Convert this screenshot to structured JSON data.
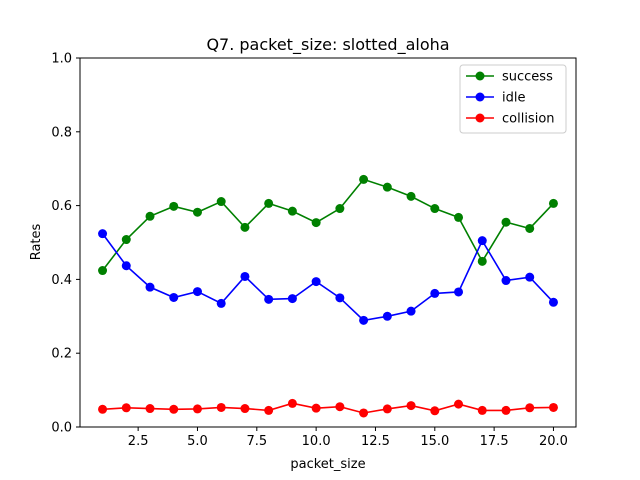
{
  "chart_data": {
    "type": "line",
    "title": "Q7. packet_size: slotted_aloha",
    "xlabel": "packet_size",
    "ylabel": "Rates",
    "xlim": [
      0.05,
      20.95
    ],
    "ylim": [
      0,
      1.0
    ],
    "xticks": [
      2.5,
      5.0,
      7.5,
      10.0,
      12.5,
      15.0,
      17.5,
      20.0
    ],
    "xtick_labels": [
      "2.5",
      "5.0",
      "7.5",
      "10.0",
      "12.5",
      "15.0",
      "17.5",
      "20.0"
    ],
    "yticks": [
      0,
      0.2,
      0.4,
      0.6,
      0.8,
      1.0
    ],
    "ytick_labels": [
      "0.0",
      "0.2",
      "0.4",
      "0.6",
      "0.8",
      "1.0"
    ],
    "grid": false,
    "legend_position": "top-right",
    "x": [
      1,
      2,
      3,
      4,
      5,
      6,
      7,
      8,
      9,
      10,
      11,
      12,
      13,
      14,
      15,
      16,
      17,
      18,
      19,
      20
    ],
    "series": [
      {
        "name": "success",
        "color": "#008000",
        "values": [
          0.424,
          0.508,
          0.571,
          0.598,
          0.582,
          0.611,
          0.541,
          0.606,
          0.585,
          0.554,
          0.592,
          0.671,
          0.65,
          0.625,
          0.592,
          0.568,
          0.449,
          0.555,
          0.538,
          0.606
        ]
      },
      {
        "name": "idle",
        "color": "#0000ff",
        "values": [
          0.524,
          0.437,
          0.379,
          0.351,
          0.367,
          0.335,
          0.408,
          0.346,
          0.348,
          0.394,
          0.35,
          0.289,
          0.3,
          0.314,
          0.362,
          0.366,
          0.505,
          0.397,
          0.406,
          0.338
        ]
      },
      {
        "name": "collision",
        "color": "#ff0000",
        "values": [
          0.048,
          0.052,
          0.05,
          0.048,
          0.049,
          0.053,
          0.05,
          0.045,
          0.064,
          0.051,
          0.055,
          0.038,
          0.049,
          0.058,
          0.044,
          0.062,
          0.045,
          0.045,
          0.052,
          0.053
        ]
      }
    ]
  }
}
